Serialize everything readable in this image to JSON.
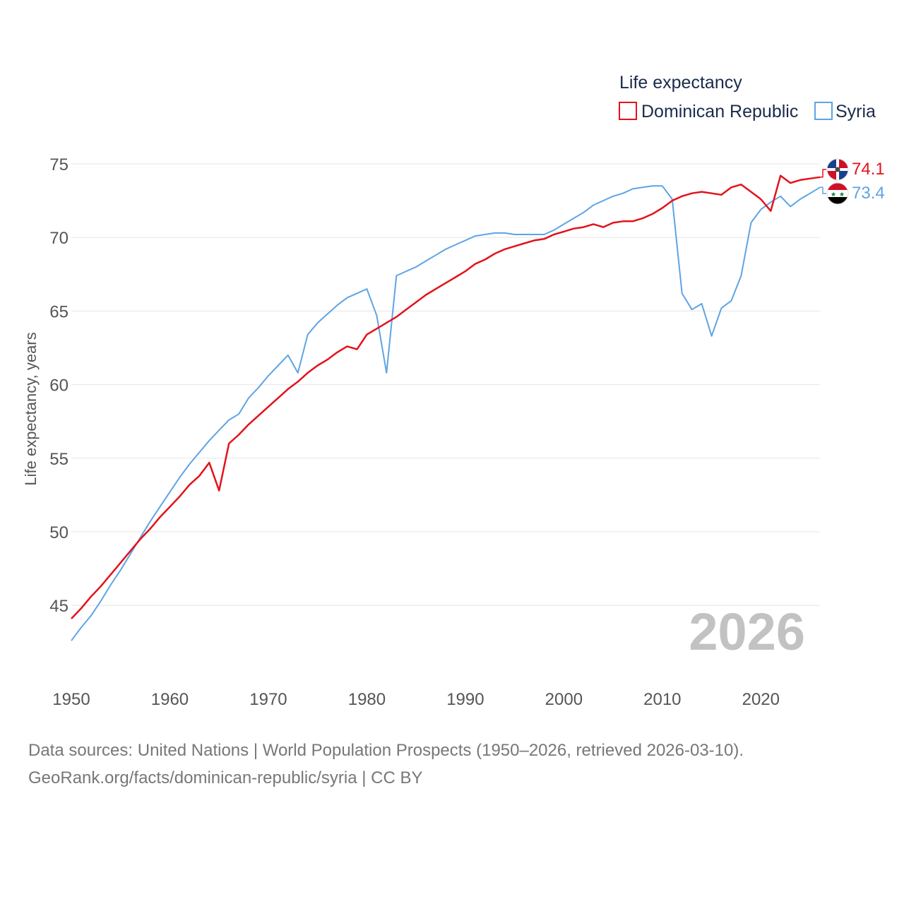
{
  "chart_data": {
    "type": "line",
    "legend_title": "Life expectancy",
    "ylabel": "Life expectancy, years",
    "xlim": [
      1950,
      2026
    ],
    "ylim": [
      42,
      75
    ],
    "yticks": [
      45,
      50,
      55,
      60,
      65,
      70,
      75
    ],
    "xticks": [
      1950,
      1960,
      1970,
      1980,
      1990,
      2000,
      2010,
      2020
    ],
    "year_label": "2026",
    "x": [
      1950,
      1951,
      1952,
      1953,
      1954,
      1955,
      1956,
      1957,
      1958,
      1959,
      1960,
      1961,
      1962,
      1963,
      1964,
      1965,
      1966,
      1967,
      1968,
      1969,
      1970,
      1971,
      1972,
      1973,
      1974,
      1975,
      1976,
      1977,
      1978,
      1979,
      1980,
      1981,
      1982,
      1983,
      1984,
      1985,
      1986,
      1987,
      1988,
      1989,
      1990,
      1991,
      1992,
      1993,
      1994,
      1995,
      1996,
      1997,
      1998,
      1999,
      2000,
      2001,
      2002,
      2003,
      2004,
      2005,
      2006,
      2007,
      2008,
      2009,
      2010,
      2011,
      2012,
      2013,
      2014,
      2015,
      2016,
      2017,
      2018,
      2019,
      2020,
      2021,
      2022,
      2023,
      2024,
      2025,
      2026
    ],
    "series": [
      {
        "name": "Dominican Republic",
        "color": "#e3121b",
        "end_label": "74.1",
        "flag": "dominican-republic-flag-icon",
        "values": [
          44.1,
          44.8,
          45.6,
          46.3,
          47.1,
          47.9,
          48.7,
          49.5,
          50.2,
          51.0,
          51.7,
          52.4,
          53.2,
          53.8,
          54.7,
          52.8,
          56.0,
          56.6,
          57.3,
          57.9,
          58.5,
          59.1,
          59.7,
          60.2,
          60.8,
          61.3,
          61.7,
          62.2,
          62.6,
          62.4,
          63.4,
          63.8,
          64.2,
          64.6,
          65.1,
          65.6,
          66.1,
          66.5,
          66.9,
          67.3,
          67.7,
          68.2,
          68.5,
          68.9,
          69.2,
          69.4,
          69.6,
          69.8,
          69.9,
          70.2,
          70.4,
          70.6,
          70.7,
          70.9,
          70.7,
          71.0,
          71.1,
          71.1,
          71.3,
          71.6,
          72.0,
          72.5,
          72.8,
          73.0,
          73.1,
          73.0,
          72.9,
          73.4,
          73.6,
          73.1,
          72.6,
          71.8,
          74.2,
          73.7,
          73.9,
          74.0,
          74.1
        ]
      },
      {
        "name": "Syria",
        "color": "#5ea4e4",
        "end_label": "73.4",
        "flag": "syria-flag-icon",
        "values": [
          42.6,
          43.5,
          44.3,
          45.3,
          46.4,
          47.4,
          48.5,
          49.6,
          50.7,
          51.7,
          52.7,
          53.7,
          54.6,
          55.4,
          56.2,
          56.9,
          57.6,
          58.0,
          59.1,
          59.8,
          60.6,
          61.3,
          62.0,
          60.8,
          63.4,
          64.2,
          64.8,
          65.4,
          65.9,
          66.2,
          66.5,
          64.7,
          60.8,
          67.4,
          67.7,
          68.0,
          68.4,
          68.8,
          69.2,
          69.5,
          69.8,
          70.1,
          70.2,
          70.3,
          70.3,
          70.2,
          70.2,
          70.2,
          70.2,
          70.5,
          70.9,
          71.3,
          71.7,
          72.2,
          72.5,
          72.8,
          73.0,
          73.3,
          73.4,
          73.5,
          73.5,
          72.6,
          66.2,
          65.1,
          65.5,
          63.3,
          65.2,
          65.7,
          67.4,
          71.0,
          71.9,
          72.4,
          72.8,
          72.1,
          72.6,
          73.0,
          73.4
        ]
      }
    ]
  },
  "footer": {
    "line1": "Data sources: United Nations | World Population Prospects (1950–2026, retrieved 2026-03-10).",
    "line2": "GeoRank.org/facts/dominican-republic/syria | CC BY"
  },
  "flags": {
    "dominican_blue": "#1b3f8f",
    "dominican_red": "#ce1126",
    "syria_red": "#ce1126",
    "syria_green": "#007a3d"
  }
}
